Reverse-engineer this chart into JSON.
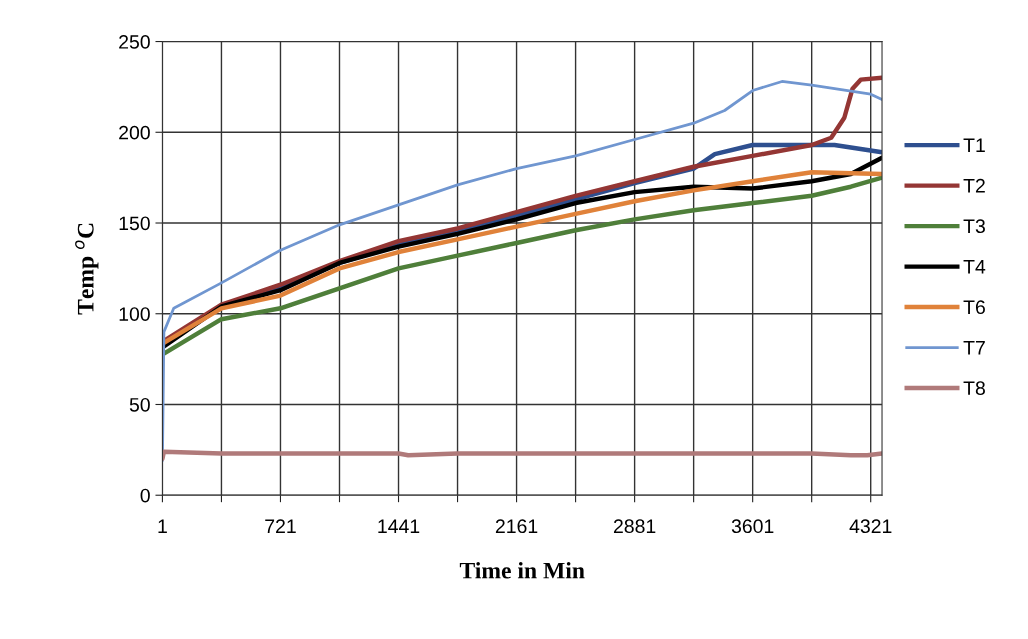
{
  "chart_data": {
    "type": "line",
    "xlabel": "Time in Min",
    "ylabel": "Temp $^{o}$C",
    "xlim": [
      1,
      4390
    ],
    "ylim": [
      0,
      250
    ],
    "xticks": [
      1,
      {
        "value": 361,
        "label": null
      },
      721,
      {
        "value": 1081,
        "label": null
      },
      1441,
      {
        "value": 1801,
        "label": null
      },
      2161,
      {
        "value": 2521,
        "label": null
      },
      2881,
      {
        "value": 3241,
        "label": null
      },
      3601,
      {
        "value": 3961,
        "label": null
      },
      4321
    ],
    "yticks": [
      0,
      50,
      100,
      150,
      200,
      250
    ],
    "grid": true,
    "legend": "right",
    "marker": "none",
    "line_style": "solid",
    "series": [
      {
        "name": "T1",
        "color": "#2e4f8f",
        "x": [
          10,
          361,
          721,
          1081,
          1441,
          1801,
          2161,
          2521,
          2881,
          3241,
          3370,
          3601,
          3961,
          4100,
          4390
        ],
        "values": [
          83,
          104,
          114,
          128,
          138,
          145,
          154,
          163,
          172,
          180,
          188,
          193,
          193,
          193,
          189
        ]
      },
      {
        "name": "T2",
        "color": "#943634",
        "x": [
          10,
          361,
          721,
          1081,
          1441,
          1801,
          2161,
          2521,
          2881,
          3241,
          3601,
          3961,
          4080,
          4160,
          4210,
          4260,
          4390
        ],
        "values": [
          85,
          105,
          116,
          129,
          140,
          147,
          156,
          165,
          173,
          181,
          187,
          193,
          197,
          208,
          224,
          229,
          230
        ]
      },
      {
        "name": "T3",
        "color": "#4f7f3a",
        "x": [
          10,
          361,
          721,
          1081,
          1441,
          1801,
          2161,
          2521,
          2881,
          3241,
          3601,
          3961,
          4200,
          4390
        ],
        "values": [
          78,
          97,
          103,
          114,
          125,
          132,
          139,
          146,
          152,
          157,
          161,
          165,
          170,
          175
        ]
      },
      {
        "name": "T4",
        "color": "#000000",
        "x": [
          10,
          361,
          721,
          1081,
          1441,
          1801,
          2161,
          2521,
          2881,
          3241,
          3601,
          3961,
          4200,
          4390
        ],
        "values": [
          82,
          104,
          113,
          128,
          137,
          144,
          152,
          161,
          167,
          170,
          169,
          173,
          177,
          186
        ]
      },
      {
        "name": "T6",
        "color": "#e0823a",
        "x": [
          10,
          361,
          721,
          1081,
          1441,
          1801,
          2161,
          2521,
          2881,
          3241,
          3601,
          3961,
          4390
        ],
        "values": [
          84,
          103,
          110,
          125,
          134,
          141,
          148,
          155,
          162,
          168,
          173,
          178,
          177
        ]
      },
      {
        "name": "T7",
        "color": "#7096d0",
        "x": [
          1,
          10,
          70,
          361,
          721,
          1081,
          1441,
          1801,
          2161,
          2521,
          2881,
          3241,
          3430,
          3601,
          3780,
          3961,
          4321,
          4390
        ],
        "values": [
          19,
          90,
          103,
          117,
          135,
          149,
          160,
          171,
          180,
          187,
          196,
          205,
          212,
          223,
          228,
          226,
          221,
          218
        ]
      },
      {
        "name": "T8",
        "color": "#b07a7a",
        "x": [
          1,
          10,
          361,
          721,
          1081,
          1441,
          1500,
          1801,
          2161,
          2521,
          2881,
          3241,
          3601,
          3961,
          4200,
          4300,
          4390
        ],
        "values": [
          20,
          24,
          23,
          23,
          23,
          23,
          22,
          23,
          23,
          23,
          23,
          23,
          23,
          23,
          22,
          22,
          23
        ]
      }
    ]
  }
}
